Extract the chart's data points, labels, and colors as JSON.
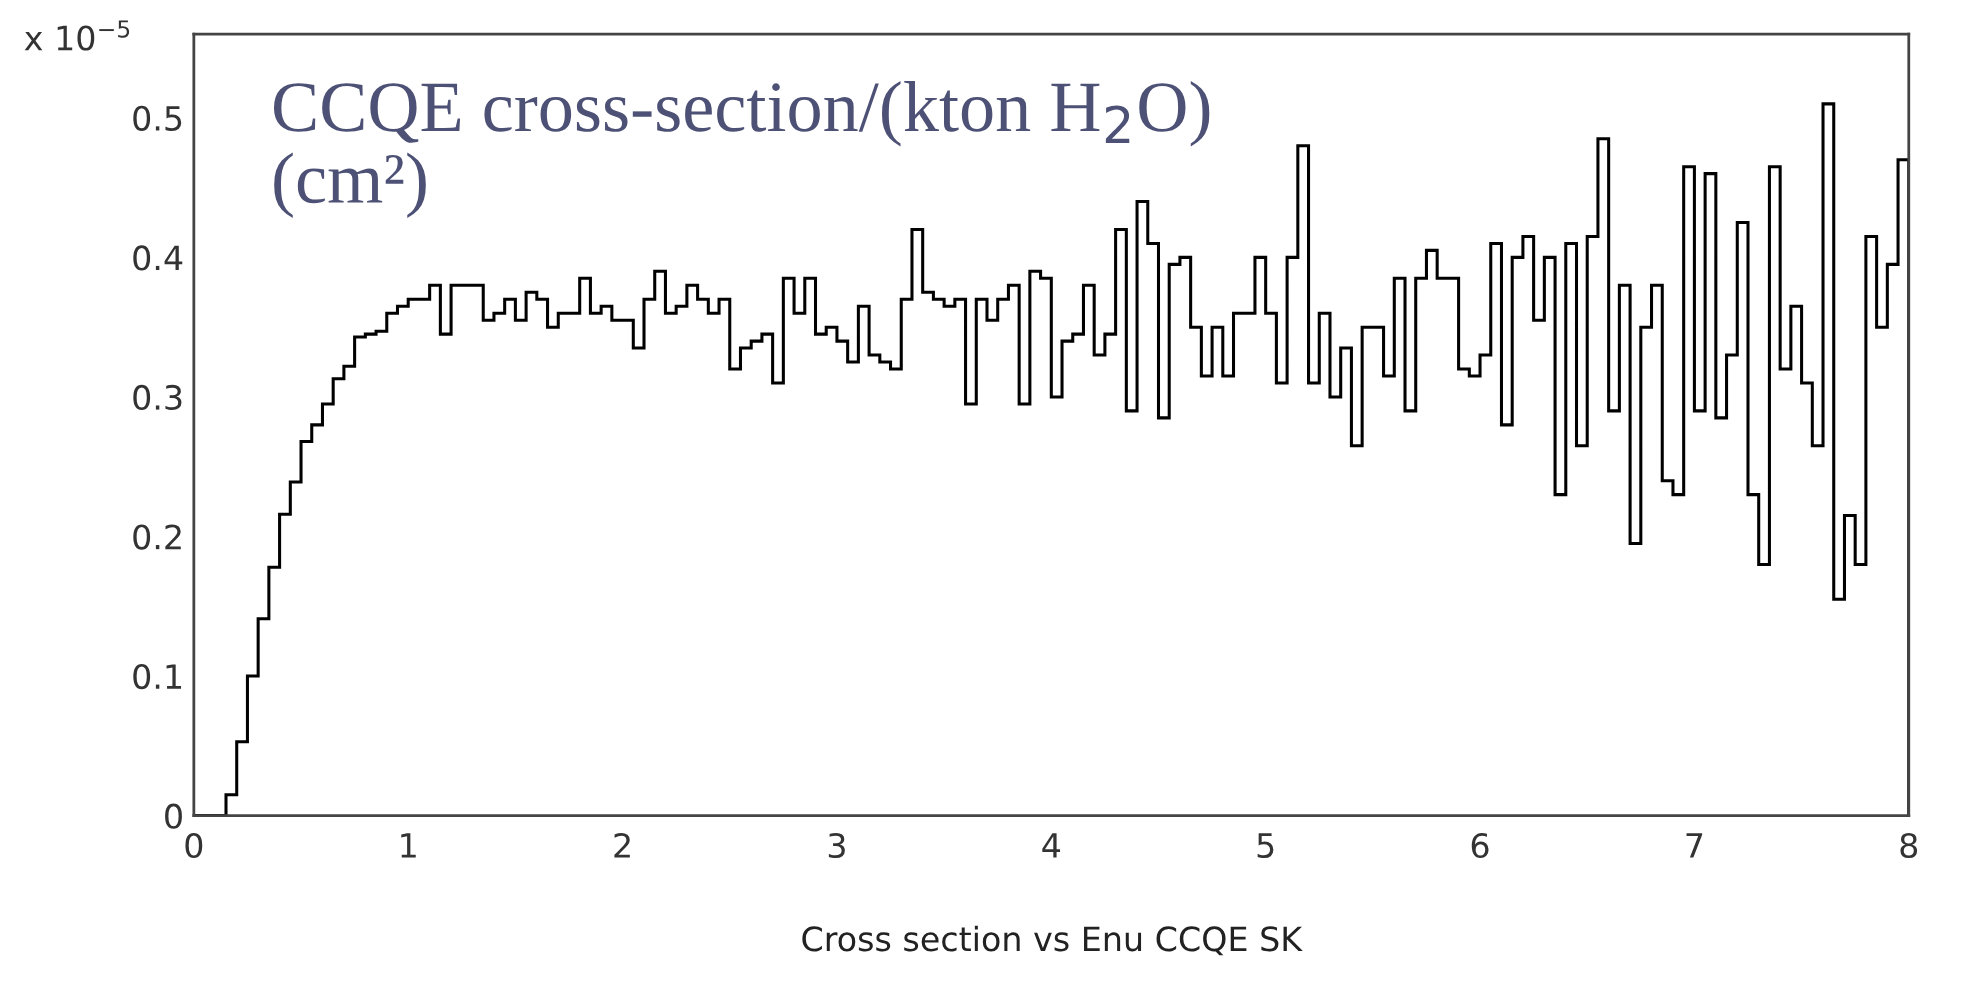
{
  "chart_data": {
    "type": "histogram",
    "title": "CCQE cross-section/(kton H$_{2}$O)\n(cm²)",
    "xlabel": "Cross section vs Enu CCQE SK",
    "annotations": [
      "x 10$^{−5}$"
    ],
    "bins": [
      0,
      0.05,
      0.1,
      0.15,
      0.2,
      0.25,
      0.3,
      0.35,
      0.4,
      0.45,
      0.5,
      0.55,
      0.6,
      0.65,
      0.7,
      0.75,
      0.8,
      0.85,
      0.9,
      0.95,
      1,
      1.05,
      1.1,
      1.15,
      1.2,
      1.25,
      1.3,
      1.35,
      1.4,
      1.45,
      1.5,
      1.55,
      1.6,
      1.65,
      1.7,
      1.75,
      1.8,
      1.85,
      1.9,
      1.95,
      2,
      2.05,
      2.1,
      2.15,
      2.2,
      2.25,
      2.3,
      2.35,
      2.4,
      2.45,
      2.5,
      2.55,
      2.6,
      2.65,
      2.7,
      2.75,
      2.8,
      2.85,
      2.9,
      2.95,
      3,
      3.05,
      3.1,
      3.15,
      3.2,
      3.25,
      3.3,
      3.35,
      3.4,
      3.45,
      3.5,
      3.55,
      3.6,
      3.65,
      3.7,
      3.75,
      3.8,
      3.85,
      3.9,
      3.95,
      4,
      4.05,
      4.1,
      4.15,
      4.2,
      4.25,
      4.3,
      4.35,
      4.4,
      4.45,
      4.5,
      4.55,
      4.6,
      4.65,
      4.7,
      4.75,
      4.8,
      4.85,
      4.9,
      4.95,
      5,
      5.05,
      5.1,
      5.15,
      5.2,
      5.25,
      5.3,
      5.35,
      5.4,
      5.45,
      5.5,
      5.55,
      5.6,
      5.65,
      5.7,
      5.75,
      5.8,
      5.85,
      5.9,
      5.95,
      6,
      6.05,
      6.1,
      6.15,
      6.2,
      6.25,
      6.3,
      6.35,
      6.4,
      6.45,
      6.5,
      6.55,
      6.6,
      6.65,
      6.7,
      6.75,
      6.8,
      6.85,
      6.9,
      6.95,
      7,
      7.05,
      7.1,
      7.15,
      7.2,
      7.25,
      7.3,
      7.35,
      7.4,
      7.45,
      7.5,
      7.55,
      7.6,
      7.65,
      7.7,
      7.75,
      7.8,
      7.85,
      7.9,
      7.95,
      8
    ],
    "values": [
      0,
      0,
      0,
      0.015,
      0.053,
      0.1,
      0.141,
      0.178,
      0.216,
      0.239,
      0.268,
      0.28,
      0.295,
      0.313,
      0.322,
      0.343,
      0.345,
      0.347,
      0.36,
      0.365,
      0.37,
      0.37,
      0.38,
      0.345,
      0.38,
      0.38,
      0.38,
      0.355,
      0.36,
      0.37,
      0.355,
      0.375,
      0.37,
      0.35,
      0.36,
      0.36,
      0.385,
      0.36,
      0.365,
      0.355,
      0.355,
      0.335,
      0.37,
      0.39,
      0.36,
      0.365,
      0.38,
      0.37,
      0.36,
      0.37,
      0.32,
      0.335,
      0.34,
      0.345,
      0.31,
      0.385,
      0.36,
      0.385,
      0.345,
      0.35,
      0.34,
      0.325,
      0.365,
      0.33,
      0.325,
      0.32,
      0.37,
      0.42,
      0.375,
      0.37,
      0.365,
      0.37,
      0.295,
      0.37,
      0.355,
      0.37,
      0.38,
      0.295,
      0.39,
      0.385,
      0.3,
      0.34,
      0.345,
      0.38,
      0.33,
      0.345,
      0.42,
      0.29,
      0.44,
      0.41,
      0.285,
      0.395,
      0.4,
      0.35,
      0.315,
      0.35,
      0.315,
      0.36,
      0.36,
      0.4,
      0.36,
      0.31,
      0.4,
      0.48,
      0.31,
      0.36,
      0.3,
      0.335,
      0.265,
      0.35,
      0.35,
      0.315,
      0.385,
      0.29,
      0.385,
      0.405,
      0.385,
      0.385,
      0.32,
      0.315,
      0.33,
      0.41,
      0.28,
      0.4,
      0.415,
      0.355,
      0.4,
      0.23,
      0.41,
      0.265,
      0.415,
      0.485,
      0.29,
      0.38,
      0.195,
      0.35,
      0.38,
      0.24,
      0.23,
      0.465,
      0.29,
      0.46,
      0.285,
      0.33,
      0.425,
      0.23,
      0.18,
      0.465,
      0.32,
      0.365,
      0.31,
      0.265,
      0.51,
      0.155,
      0.215,
      0.18,
      0.415,
      0.35,
      0.395,
      0.47
    ],
    "color": "#000000",
    "xlim": [
      0,
      8
    ],
    "ylim": [
      0,
      0.56
    ],
    "xticks": [
      0,
      1,
      2,
      3,
      4,
      5,
      6,
      7,
      8
    ],
    "yticks": [
      0,
      0.1,
      0.2,
      0.3,
      0.4,
      0.5
    ],
    "grid": false,
    "legend": false
  }
}
